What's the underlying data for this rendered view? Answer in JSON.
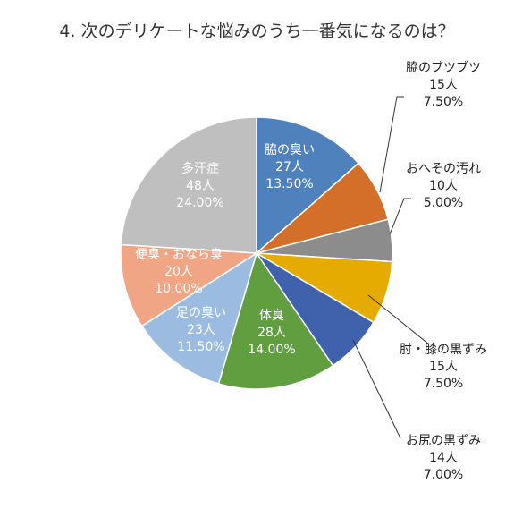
{
  "chart_data": {
    "type": "pie",
    "title": "4. 次のデリケートな悩みのうち一番気になるのは？",
    "legend": "none",
    "slices": [
      {
        "label": "脇の臭い",
        "count": "27人",
        "percent": "13.50%",
        "value": 13.5,
        "color": "#4f81bd"
      },
      {
        "label": "脇のブツブツ",
        "count": "15人",
        "percent": "7.50%",
        "value": 7.5,
        "color": "#d46f2a"
      },
      {
        "label": "おへその汚れ",
        "count": "10人",
        "percent": "5.00%",
        "value": 5.0,
        "color": "#8c8c8c"
      },
      {
        "label": "肘・膝の黒ずみ",
        "count": "15人",
        "percent": "7.50%",
        "value": 7.5,
        "color": "#e5ab00"
      },
      {
        "label": "お尻の黒ずみ",
        "count": "14人",
        "percent": "7.00%",
        "value": 7.0,
        "color": "#4062ad"
      },
      {
        "label": "体臭",
        "count": "28人",
        "percent": "14.00%",
        "value": 14.0,
        "color": "#619e3f"
      },
      {
        "label": "足の臭い",
        "count": "23人",
        "percent": "11.50%",
        "value": 11.5,
        "color": "#9bbce0"
      },
      {
        "label": "便臭・おなら臭",
        "count": "20人",
        "percent": "10.00%",
        "value": 10.0,
        "color": "#f0a584"
      },
      {
        "label": "多汗症",
        "count": "48人",
        "percent": "24.00%",
        "value": 24.0,
        "color": "#bfbfbf"
      }
    ]
  }
}
